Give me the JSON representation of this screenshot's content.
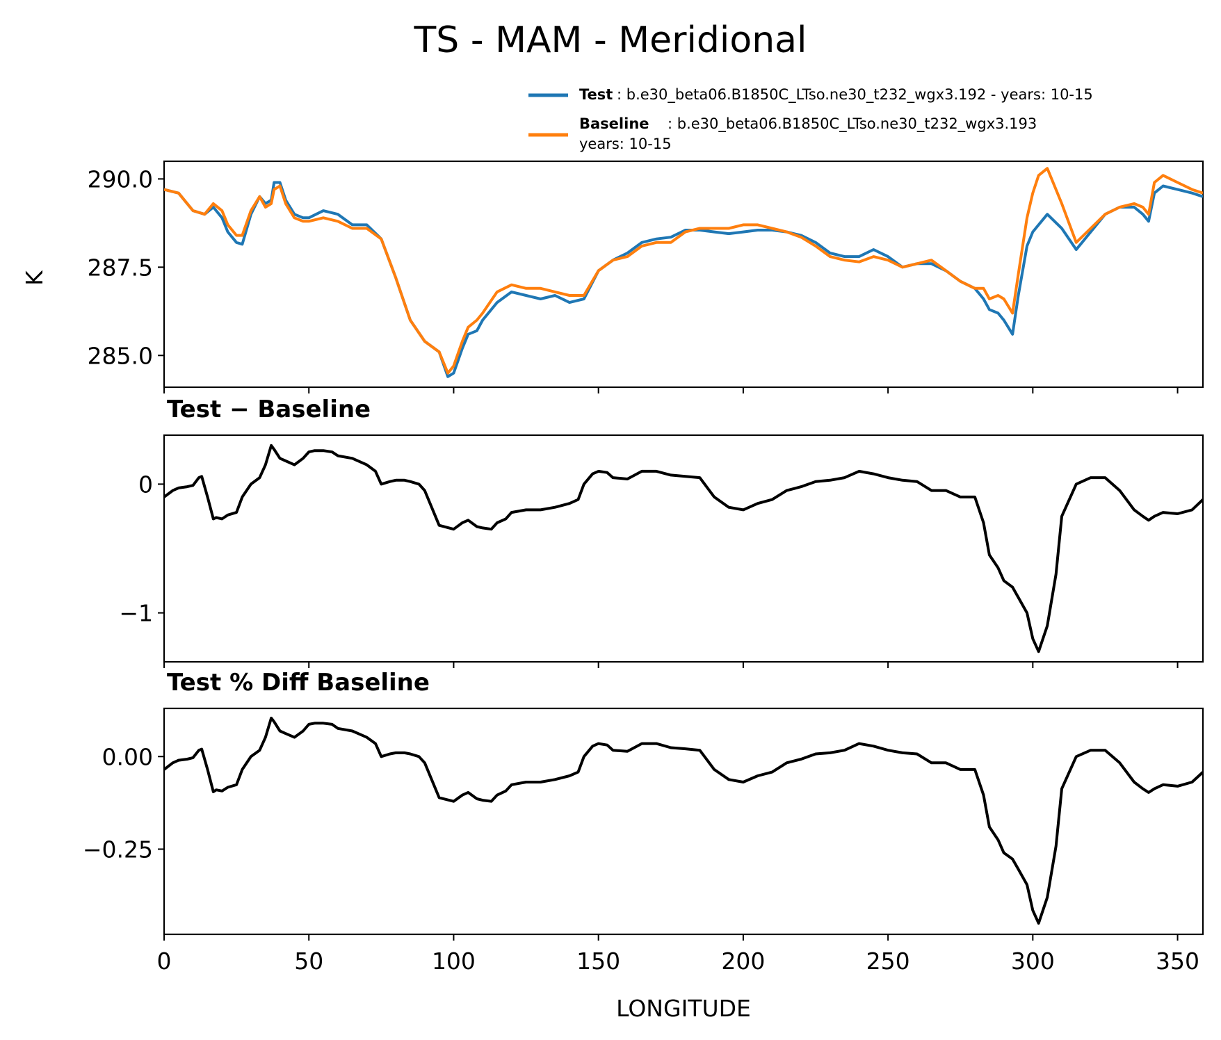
{
  "chart_data": [
    {
      "type": "line",
      "title": "TS - MAM - Meridional",
      "ylabel": "K",
      "xlabel": "",
      "xlim": [
        0,
        358.75
      ],
      "ylim": [
        284.1,
        290.5
      ],
      "yticks": [
        "285.0",
        "287.5",
        "290.0"
      ],
      "ytick_values": [
        285.0,
        287.5,
        290.0
      ],
      "legend": {
        "position": "top-right",
        "entries": [
          {
            "name": "Test",
            "desc": ": b.e30_beta06.B1850C_LTso.ne30_t232_wgx3.192 - years: 10-15",
            "desc2": "",
            "color": "#1f77b4"
          },
          {
            "name": "Baseline",
            "desc": ": b.e30_beta06.B1850C_LTso.ne30_t232_wgx3.193",
            "desc2": "years: 10-15",
            "color": "#ff7f0e"
          }
        ]
      },
      "series": [
        {
          "name": "Test",
          "color": "#1f77b4",
          "x": [
            0,
            5,
            10,
            14,
            17,
            20,
            22,
            25,
            27,
            30,
            33,
            35,
            37,
            38,
            40,
            42,
            45,
            48,
            50,
            55,
            60,
            65,
            70,
            75,
            80,
            85,
            90,
            95,
            98,
            100,
            103,
            105,
            108,
            110,
            115,
            120,
            125,
            130,
            135,
            140,
            145,
            150,
            155,
            160,
            165,
            170,
            175,
            180,
            185,
            190,
            195,
            200,
            205,
            210,
            215,
            220,
            225,
            230,
            235,
            240,
            245,
            250,
            255,
            260,
            265,
            270,
            275,
            280,
            283,
            285,
            288,
            290,
            293,
            295,
            298,
            300,
            302,
            305,
            310,
            315,
            320,
            325,
            330,
            335,
            338,
            340,
            342,
            345,
            350,
            355,
            358.75
          ],
          "values": [
            289.7,
            289.6,
            289.1,
            289.0,
            289.2,
            288.9,
            288.5,
            288.2,
            288.15,
            289.0,
            289.5,
            289.3,
            289.4,
            289.9,
            289.9,
            289.4,
            289.0,
            288.9,
            288.9,
            289.1,
            289.0,
            288.7,
            288.7,
            288.3,
            287.2,
            286.0,
            285.4,
            285.1,
            284.4,
            284.5,
            285.2,
            285.6,
            285.7,
            286.0,
            286.5,
            286.8,
            286.7,
            286.6,
            286.7,
            286.5,
            286.6,
            287.4,
            287.7,
            287.9,
            288.2,
            288.3,
            288.35,
            288.55,
            288.55,
            288.5,
            288.45,
            288.5,
            288.55,
            288.55,
            288.5,
            288.4,
            288.2,
            287.9,
            287.8,
            287.8,
            288.0,
            287.8,
            287.5,
            287.6,
            287.6,
            287.4,
            287.1,
            286.9,
            286.6,
            286.3,
            286.2,
            286.0,
            285.6,
            286.7,
            288.1,
            288.5,
            288.7,
            289.0,
            288.6,
            288.0,
            288.5,
            289.0,
            289.2,
            289.2,
            289.0,
            288.8,
            289.6,
            289.8,
            289.7,
            289.6,
            289.5
          ]
        },
        {
          "name": "Baseline",
          "color": "#ff7f0e",
          "x": [
            0,
            5,
            10,
            14,
            17,
            20,
            22,
            25,
            27,
            30,
            33,
            35,
            37,
            38,
            40,
            42,
            45,
            48,
            50,
            55,
            60,
            65,
            70,
            75,
            80,
            85,
            90,
            95,
            98,
            100,
            103,
            105,
            108,
            110,
            115,
            120,
            125,
            130,
            135,
            140,
            145,
            150,
            155,
            160,
            165,
            170,
            175,
            180,
            185,
            190,
            195,
            200,
            205,
            210,
            215,
            220,
            225,
            230,
            235,
            240,
            245,
            250,
            255,
            260,
            265,
            270,
            275,
            280,
            283,
            285,
            288,
            290,
            293,
            295,
            298,
            300,
            302,
            305,
            310,
            315,
            320,
            325,
            330,
            335,
            338,
            340,
            342,
            345,
            350,
            355,
            358.75
          ],
          "values": [
            289.7,
            289.6,
            289.1,
            289.0,
            289.3,
            289.1,
            288.7,
            288.4,
            288.4,
            289.1,
            289.5,
            289.2,
            289.3,
            289.7,
            289.8,
            289.3,
            288.9,
            288.8,
            288.8,
            288.9,
            288.8,
            288.6,
            288.6,
            288.3,
            287.2,
            286.0,
            285.4,
            285.1,
            284.5,
            284.7,
            285.4,
            285.8,
            286.0,
            286.2,
            286.8,
            287.0,
            286.9,
            286.9,
            286.8,
            286.7,
            286.7,
            287.4,
            287.7,
            287.8,
            288.1,
            288.2,
            288.2,
            288.5,
            288.6,
            288.6,
            288.6,
            288.7,
            288.7,
            288.6,
            288.5,
            288.35,
            288.1,
            287.8,
            287.7,
            287.65,
            287.8,
            287.7,
            287.5,
            287.6,
            287.7,
            287.4,
            287.1,
            286.9,
            286.9,
            286.6,
            286.7,
            286.6,
            286.2,
            287.3,
            288.9,
            289.6,
            290.1,
            290.3,
            289.3,
            288.2,
            288.6,
            289.0,
            289.2,
            289.3,
            289.2,
            289.0,
            289.9,
            290.1,
            289.9,
            289.7,
            289.6
          ]
        }
      ]
    },
    {
      "type": "line",
      "title": "Test − Baseline",
      "xlim": [
        0,
        358.75
      ],
      "ylim": [
        -1.38,
        0.38
      ],
      "yticks": [
        "−1",
        "0"
      ],
      "ytick_values": [
        -1,
        0
      ],
      "series": [
        {
          "name": "Test − Baseline",
          "color": "#000000",
          "x": [
            0,
            3,
            5,
            8,
            10,
            12,
            13,
            15,
            17,
            18,
            20,
            22,
            25,
            27,
            30,
            33,
            35,
            37,
            38,
            40,
            42,
            45,
            48,
            50,
            52,
            55,
            58,
            60,
            65,
            70,
            73,
            75,
            78,
            80,
            83,
            85,
            88,
            90,
            95,
            100,
            103,
            105,
            108,
            110,
            113,
            115,
            118,
            120,
            125,
            130,
            135,
            140,
            143,
            145,
            148,
            150,
            153,
            155,
            160,
            165,
            170,
            175,
            180,
            185,
            190,
            195,
            200,
            205,
            210,
            215,
            220,
            225,
            230,
            235,
            240,
            245,
            250,
            255,
            260,
            265,
            270,
            275,
            280,
            283,
            285,
            288,
            290,
            293,
            295,
            298,
            300,
            302,
            305,
            308,
            310,
            315,
            320,
            325,
            330,
            335,
            338,
            340,
            342,
            345,
            350,
            355,
            358.75
          ],
          "values": [
            -0.1,
            -0.05,
            -0.03,
            -0.02,
            -0.01,
            0.05,
            0.06,
            -0.1,
            -0.27,
            -0.26,
            -0.27,
            -0.24,
            -0.22,
            -0.1,
            0.0,
            0.05,
            0.15,
            0.3,
            0.27,
            0.2,
            0.18,
            0.15,
            0.2,
            0.25,
            0.26,
            0.26,
            0.25,
            0.22,
            0.2,
            0.15,
            0.1,
            0.0,
            0.02,
            0.03,
            0.03,
            0.02,
            0.0,
            -0.05,
            -0.32,
            -0.35,
            -0.3,
            -0.28,
            -0.33,
            -0.34,
            -0.35,
            -0.3,
            -0.27,
            -0.22,
            -0.2,
            -0.2,
            -0.18,
            -0.15,
            -0.12,
            0.0,
            0.08,
            0.1,
            0.09,
            0.05,
            0.04,
            0.1,
            0.1,
            0.07,
            0.06,
            0.05,
            -0.1,
            -0.18,
            -0.2,
            -0.15,
            -0.12,
            -0.05,
            -0.02,
            0.02,
            0.03,
            0.05,
            0.1,
            0.08,
            0.05,
            0.03,
            0.02,
            -0.05,
            -0.05,
            -0.1,
            -0.1,
            -0.3,
            -0.55,
            -0.65,
            -0.75,
            -0.8,
            -0.88,
            -1.0,
            -1.2,
            -1.3,
            -1.1,
            -0.7,
            -0.25,
            0.0,
            0.05,
            0.05,
            -0.05,
            -0.2,
            -0.25,
            -0.28,
            -0.25,
            -0.22,
            -0.23,
            -0.2,
            -0.12
          ]
        }
      ]
    },
    {
      "type": "line",
      "title": "Test % Diff Baseline",
      "xlabel": "LONGITUDE",
      "xlim": [
        0,
        358.75
      ],
      "ylim": [
        -0.48,
        0.13
      ],
      "yticks": [
        "−0.25",
        "0.00"
      ],
      "ytick_values": [
        -0.25,
        0.0
      ],
      "xticks": [
        "0",
        "50",
        "100",
        "150",
        "200",
        "250",
        "300",
        "350"
      ],
      "xtick_values": [
        0,
        50,
        100,
        150,
        200,
        250,
        300,
        350
      ],
      "series": [
        {
          "name": "Test % Diff Baseline",
          "color": "#000000",
          "x": [
            0,
            3,
            5,
            8,
            10,
            12,
            13,
            15,
            17,
            18,
            20,
            22,
            25,
            27,
            30,
            33,
            35,
            37,
            38,
            40,
            42,
            45,
            48,
            50,
            52,
            55,
            58,
            60,
            65,
            70,
            73,
            75,
            78,
            80,
            83,
            85,
            88,
            90,
            95,
            100,
            103,
            105,
            108,
            110,
            113,
            115,
            118,
            120,
            125,
            130,
            135,
            140,
            143,
            145,
            148,
            150,
            153,
            155,
            160,
            165,
            170,
            175,
            180,
            185,
            190,
            195,
            200,
            205,
            210,
            215,
            220,
            225,
            230,
            235,
            240,
            245,
            250,
            255,
            260,
            265,
            270,
            275,
            280,
            283,
            285,
            288,
            290,
            293,
            295,
            298,
            300,
            302,
            305,
            308,
            310,
            315,
            320,
            325,
            330,
            335,
            338,
            340,
            342,
            345,
            350,
            355,
            358.75
          ],
          "values": [
            -0.035,
            -0.017,
            -0.01,
            -0.007,
            -0.003,
            0.017,
            0.02,
            -0.035,
            -0.095,
            -0.09,
            -0.093,
            -0.083,
            -0.076,
            -0.035,
            0.0,
            0.017,
            0.052,
            0.104,
            0.094,
            0.069,
            0.062,
            0.052,
            0.069,
            0.087,
            0.09,
            0.09,
            0.087,
            0.076,
            0.069,
            0.052,
            0.035,
            0.0,
            0.007,
            0.01,
            0.01,
            0.007,
            0.0,
            -0.017,
            -0.111,
            -0.121,
            -0.104,
            -0.097,
            -0.114,
            -0.118,
            -0.121,
            -0.104,
            -0.093,
            -0.076,
            -0.069,
            -0.069,
            -0.062,
            -0.052,
            -0.042,
            0.0,
            0.028,
            0.035,
            0.031,
            0.017,
            0.014,
            0.035,
            0.035,
            0.024,
            0.021,
            0.017,
            -0.035,
            -0.062,
            -0.069,
            -0.052,
            -0.042,
            -0.017,
            -0.007,
            0.007,
            0.01,
            0.017,
            0.035,
            0.028,
            0.017,
            0.01,
            0.007,
            -0.017,
            -0.017,
            -0.035,
            -0.035,
            -0.104,
            -0.19,
            -0.225,
            -0.26,
            -0.277,
            -0.304,
            -0.346,
            -0.415,
            -0.45,
            -0.38,
            -0.242,
            -0.087,
            0.0,
            0.017,
            0.017,
            -0.017,
            -0.069,
            -0.087,
            -0.097,
            -0.087,
            -0.076,
            -0.08,
            -0.069,
            -0.042
          ]
        }
      ]
    }
  ]
}
